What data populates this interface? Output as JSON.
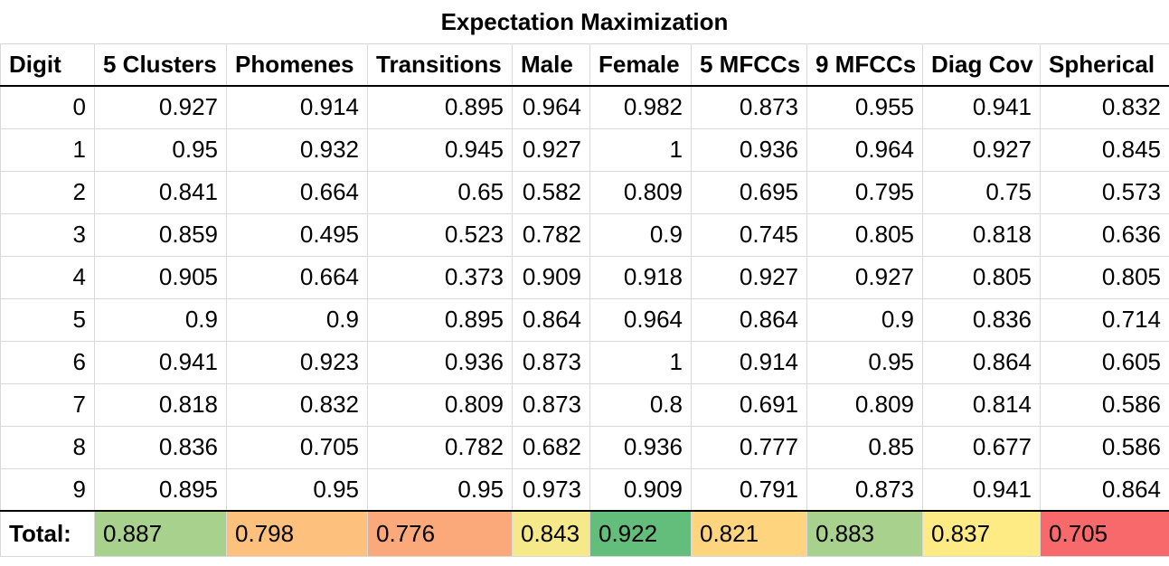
{
  "title": "Expectation Maximization",
  "columns": [
    "Digit",
    "5 Clusters",
    "Phomenes",
    "Transitions",
    "Male",
    "Female",
    "5 MFCCs",
    "9 MFCCs",
    "Diag Cov",
    "Spherical"
  ],
  "rows": [
    [
      "0",
      "0.927",
      "0.914",
      "0.895",
      "0.964",
      "0.982",
      "0.873",
      "0.955",
      "0.941",
      "0.832"
    ],
    [
      "1",
      "0.95",
      "0.932",
      "0.945",
      "0.927",
      "1",
      "0.936",
      "0.964",
      "0.927",
      "0.845"
    ],
    [
      "2",
      "0.841",
      "0.664",
      "0.65",
      "0.582",
      "0.809",
      "0.695",
      "0.795",
      "0.75",
      "0.573"
    ],
    [
      "3",
      "0.859",
      "0.495",
      "0.523",
      "0.782",
      "0.9",
      "0.745",
      "0.805",
      "0.818",
      "0.636"
    ],
    [
      "4",
      "0.905",
      "0.664",
      "0.373",
      "0.909",
      "0.918",
      "0.927",
      "0.927",
      "0.805",
      "0.805"
    ],
    [
      "5",
      "0.9",
      "0.9",
      "0.895",
      "0.864",
      "0.964",
      "0.864",
      "0.9",
      "0.836",
      "0.714"
    ],
    [
      "6",
      "0.941",
      "0.923",
      "0.936",
      "0.873",
      "1",
      "0.914",
      "0.95",
      "0.864",
      "0.605"
    ],
    [
      "7",
      "0.818",
      "0.832",
      "0.809",
      "0.873",
      "0.8",
      "0.691",
      "0.809",
      "0.814",
      "0.586"
    ],
    [
      "8",
      "0.836",
      "0.705",
      "0.782",
      "0.682",
      "0.936",
      "0.777",
      "0.85",
      "0.677",
      "0.586"
    ],
    [
      "9",
      "0.895",
      "0.95",
      "0.95",
      "0.973",
      "0.909",
      "0.791",
      "0.873",
      "0.941",
      "0.864"
    ]
  ],
  "total": {
    "label": "Total:",
    "values": [
      "0.887",
      "0.798",
      "0.776",
      "0.843",
      "0.922",
      "0.821",
      "0.883",
      "0.837",
      "0.705"
    ],
    "colors": [
      "#a9d18e",
      "#fdc07d",
      "#fba87a",
      "#f5e98a",
      "#63be7b",
      "#ffd47f",
      "#a9d18e",
      "#ffeb84",
      "#f8696b"
    ]
  }
}
